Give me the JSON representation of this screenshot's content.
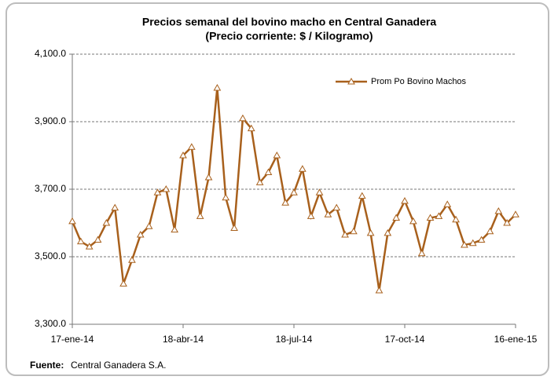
{
  "chart_data": {
    "type": "line",
    "title": "Precios semanal del bovino  macho en Central Ganadera",
    "subtitle": "(Precio corriente: $ / Kilogramo)",
    "source_label": "Fuente:",
    "source": "Central Ganadera S.A.",
    "categories": [
      "17-ene-14",
      null,
      null,
      null,
      null,
      null,
      null,
      null,
      null,
      null,
      null,
      null,
      null,
      "18-abr-14",
      null,
      null,
      null,
      null,
      null,
      null,
      null,
      null,
      null,
      null,
      null,
      null,
      "18-jul-14",
      null,
      null,
      null,
      null,
      null,
      null,
      null,
      null,
      null,
      null,
      null,
      null,
      "17-oct-14",
      null,
      null,
      null,
      null,
      null,
      null,
      null,
      null,
      null,
      null,
      null,
      null,
      "16-ene-15"
    ],
    "series": [
      {
        "name": "Prom Po Bovino Machos",
        "color": "#a8601c",
        "values": [
          3605,
          3545,
          3530,
          3550,
          3600,
          3645,
          3420,
          3490,
          3565,
          3590,
          3690,
          3700,
          3580,
          3800,
          3825,
          3620,
          3735,
          4000,
          3675,
          3585,
          3910,
          3880,
          3720,
          3750,
          3800,
          3660,
          3690,
          3760,
          3620,
          3690,
          3625,
          3645,
          3565,
          3575,
          3680,
          3570,
          3400,
          3570,
          3615,
          3665,
          3605,
          3510,
          3615,
          3620,
          3655,
          3610,
          3535,
          3540,
          3550,
          3575,
          3635,
          3600,
          3625
        ]
      }
    ],
    "ylim": [
      3300,
      4100
    ],
    "yticks": [
      {
        "value": 3300,
        "label": "3,300.0"
      },
      {
        "value": 3500,
        "label": "3,500.0"
      },
      {
        "value": 3700,
        "label": "3,700.0"
      },
      {
        "value": 3900,
        "label": "3,900.0"
      },
      {
        "value": 4100,
        "label": "4,100.0"
      }
    ],
    "grid": true,
    "legend": "top-right"
  }
}
